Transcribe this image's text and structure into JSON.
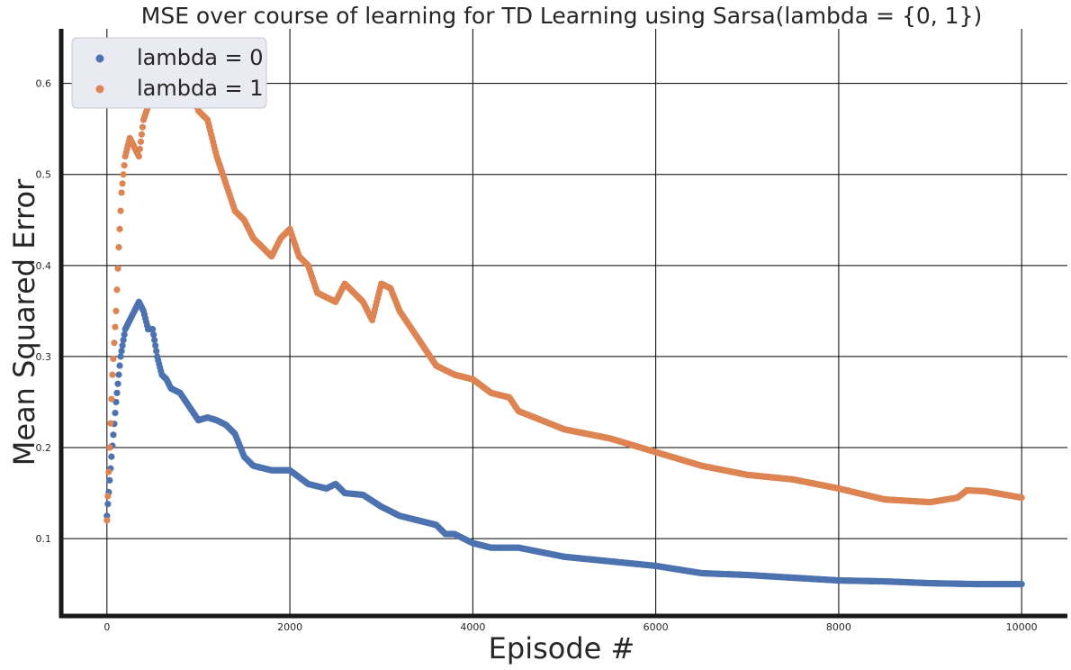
{
  "chart_data": {
    "type": "scatter",
    "title": "MSE over course of learning for TD Learning using Sarsa(lambda = {0, 1})",
    "xlabel": "Episode #",
    "ylabel": "Mean Squared Error",
    "xlim": [
      -500,
      10500
    ],
    "ylim": [
      0.015,
      0.66
    ],
    "xticks": [
      0,
      2000,
      4000,
      6000,
      8000,
      10000
    ],
    "yticks": [
      0.1,
      0.2,
      0.3,
      0.4,
      0.5,
      0.6
    ],
    "xtick_labels": [
      "0",
      "2000",
      "4000",
      "6000",
      "8000",
      "10000"
    ],
    "ytick_labels": [
      "0.1",
      "0.2",
      "0.3",
      "0.4",
      "0.5",
      "0.6"
    ],
    "grid": true,
    "legend_position": "top-left",
    "colors": {
      "lambda0": "#4c72b0",
      "lambda1": "#dd8452",
      "grid": "#000000",
      "spine": "#1a1a1a",
      "legend_bg": "#eaeaf2"
    },
    "series": [
      {
        "name": "lambda = 0",
        "color": "#4c72b0",
        "x": [
          0,
          50,
          100,
          150,
          200,
          250,
          300,
          350,
          400,
          450,
          500,
          550,
          600,
          650,
          700,
          800,
          900,
          1000,
          1100,
          1200,
          1300,
          1400,
          1500,
          1600,
          1800,
          2000,
          2200,
          2400,
          2500,
          2600,
          2800,
          3000,
          3200,
          3400,
          3600,
          3700,
          3800,
          4000,
          4200,
          4500,
          5000,
          5500,
          6000,
          6500,
          7000,
          7500,
          8000,
          8500,
          9000,
          9500,
          10000
        ],
        "y": [
          0.125,
          0.19,
          0.25,
          0.3,
          0.33,
          0.34,
          0.35,
          0.36,
          0.35,
          0.33,
          0.33,
          0.3,
          0.28,
          0.275,
          0.265,
          0.26,
          0.245,
          0.23,
          0.233,
          0.23,
          0.225,
          0.215,
          0.19,
          0.18,
          0.175,
          0.175,
          0.16,
          0.155,
          0.16,
          0.15,
          0.148,
          0.135,
          0.125,
          0.12,
          0.115,
          0.105,
          0.105,
          0.095,
          0.09,
          0.09,
          0.08,
          0.075,
          0.07,
          0.062,
          0.06,
          0.057,
          0.054,
          0.053,
          0.051,
          0.05,
          0.05
        ]
      },
      {
        "name": "lambda = 1",
        "color": "#dd8452",
        "x": [
          0,
          30,
          60,
          100,
          130,
          160,
          200,
          250,
          300,
          350,
          400,
          500,
          600,
          700,
          800,
          900,
          1000,
          1100,
          1200,
          1300,
          1400,
          1500,
          1600,
          1700,
          1800,
          1900,
          2000,
          2100,
          2200,
          2300,
          2400,
          2500,
          2600,
          2800,
          2900,
          3000,
          3100,
          3200,
          3400,
          3600,
          3700,
          3800,
          4000,
          4200,
          4400,
          4500,
          5000,
          5500,
          6000,
          6500,
          7000,
          7500,
          8000,
          8500,
          9000,
          9300,
          9400,
          9600,
          10000
        ],
        "y": [
          0.12,
          0.2,
          0.28,
          0.35,
          0.42,
          0.48,
          0.52,
          0.54,
          0.53,
          0.52,
          0.56,
          0.59,
          0.6,
          0.62,
          0.61,
          0.6,
          0.57,
          0.56,
          0.52,
          0.49,
          0.46,
          0.45,
          0.43,
          0.42,
          0.41,
          0.43,
          0.44,
          0.41,
          0.4,
          0.37,
          0.365,
          0.36,
          0.38,
          0.36,
          0.34,
          0.38,
          0.375,
          0.35,
          0.32,
          0.29,
          0.285,
          0.28,
          0.275,
          0.26,
          0.255,
          0.24,
          0.22,
          0.21,
          0.195,
          0.18,
          0.17,
          0.165,
          0.155,
          0.143,
          0.14,
          0.145,
          0.153,
          0.152,
          0.145
        ]
      }
    ]
  }
}
